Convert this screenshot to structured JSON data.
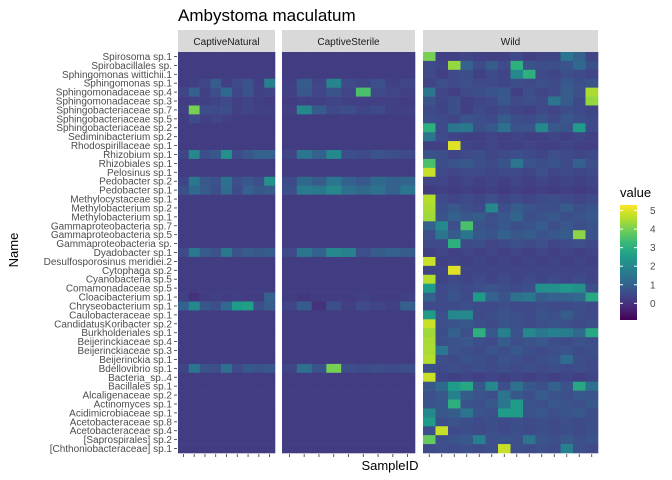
{
  "chart_data": {
    "type": "heatmap",
    "title": "Ambystoma maculatum",
    "xlabel": "SampleID",
    "ylabel": "Name",
    "facets": [
      "CaptiveNatural",
      "CaptiveSterile",
      "Wild"
    ],
    "facet_sample_counts": [
      9,
      9,
      14
    ],
    "rows": [
      "Spirosoma sp.1",
      "Spirobacillales sp.",
      "Sphingomonas wittichii.1",
      "Sphingomonas sp.1",
      "Sphingomonadaceae sp.4",
      "Sphingomonadaceae sp.3",
      "Sphingobacteriaceae sp.7",
      "Sphingobacteriaceae sp.5",
      "Sphingobacteriaceae sp.2",
      "Sediminibacterium sp.2",
      "Rhodospirillaceae sp.1",
      "Rhizobium sp.1",
      "Rhizobiales sp.1",
      "Pelosinus sp.1",
      "Pedobacter sp.2",
      "Pedobacter sp.1",
      "Methylocystaceae sp.1",
      "Methylobacterium sp.2",
      "Methylobacterium sp.1",
      "Gammaproteobacteria sp.7",
      "Gammaproteobacteria sp.5",
      "Gammaproteobacteria sp.",
      "Dyadobacter sp.1",
      "Desulfosporosinus meridiei.2",
      "Cytophaga sp.2",
      "Cyanobacteria sp.5",
      "Comamonadaceae sp.5",
      "Cloacibacterium sp.1",
      "Chryseobacterium sp.1",
      "Caulobacteraceae sp.1",
      "CandidatusKoribacter sp.2",
      "Burkholderiales sp.1",
      "Beijerinckiaceae sp.4",
      "Beijerinckiaceae sp.3",
      "Beijerinckia sp.1",
      "Bdellovibrio sp.1",
      "Bacteria_sp..4",
      "Bacillales sp.1",
      "Alcaligenaceae sp.2",
      "Actinomyces sp.1",
      "Acidimicrobiaceae sp.1",
      "Acetobacteraceae sp.8",
      "Acetobacteraceae sp.4",
      "[Saprospirales] sp.2",
      "[Chthoniobacteraceae] sp.1"
    ],
    "values": {
      "CaptiveNatural": {
        "Sphingomonas sp.1": [
          0.2,
          0.3,
          0.4,
          0.9,
          0.3,
          0.5,
          0.7,
          0.3,
          1.8
        ],
        "Sphingomonadaceae sp.4": [
          0.4,
          1.0,
          0.3,
          0.6,
          1.2,
          0.4,
          0.7,
          0.3,
          0.4
        ],
        "Sphingomonadaceae sp.3": [
          0.2,
          0.3,
          0.3,
          0.4,
          0.5,
          0.3,
          0.4,
          0.3,
          0.2
        ],
        "Sphingobacteriaceae sp.7": [
          0.3,
          4.0,
          0.6,
          0.5,
          0.6,
          0.3,
          0.4,
          0.3,
          0.3
        ],
        "Sphingobacteriaceae sp.5": [
          0.2,
          0.5,
          0.3,
          0.4,
          0.3,
          0.2,
          0.2,
          0.2,
          0.2
        ],
        "Rhizobium sp.1": [
          0.4,
          2.0,
          0.6,
          0.8,
          2.2,
          0.5,
          0.8,
          1.0,
          1.0
        ],
        "Pedobacter sp.2": [
          0.4,
          1.6,
          0.8,
          0.7,
          1.4,
          0.6,
          0.8,
          0.6,
          2.2
        ],
        "Pedobacter sp.1": [
          0.6,
          1.2,
          0.9,
          0.6,
          1.3,
          0.5,
          1.0,
          0.8,
          0.9
        ],
        "Dyadobacter sp.1": [
          0.5,
          1.6,
          0.9,
          0.7,
          1.6,
          0.7,
          0.9,
          0.8,
          0.9
        ],
        "Cloacibacterium sp.1": [
          0.3,
          0.0,
          0.2,
          0.3,
          0.2,
          0.3,
          0.2,
          0.2,
          1.0
        ],
        "Chryseobacterium sp.1": [
          1.0,
          2.0,
          0.8,
          0.6,
          1.2,
          2.5,
          2.6,
          0.6,
          0.9
        ],
        "Bdellovibrio sp.1": [
          0.4,
          1.5,
          0.7,
          0.6,
          1.4,
          0.5,
          0.8,
          0.7,
          0.8
        ]
      },
      "CaptiveSterile": {
        "Sphingomonas sp.1": [
          0.3,
          0.9,
          0.4,
          1.9,
          0.5,
          0.4,
          0.6,
          0.3,
          0.4
        ],
        "Sphingomonadaceae sp.4": [
          0.3,
          0.8,
          0.4,
          0.7,
          0.4,
          3.5,
          0.5,
          0.4,
          0.3
        ],
        "Sphingomonadaceae sp.3": [
          0.2,
          0.3,
          0.3,
          0.4,
          0.3,
          0.3,
          0.3,
          0.3,
          0.2
        ],
        "Sphingobacteriaceae sp.7": [
          0.3,
          2.0,
          0.9,
          0.5,
          0.6,
          0.4,
          0.5,
          0.3,
          0.3
        ],
        "Rhizobium sp.1": [
          0.4,
          1.5,
          1.0,
          2.0,
          0.6,
          0.5,
          0.7,
          0.6,
          0.5
        ],
        "Pedobacter sp.2": [
          0.5,
          1.2,
          0.9,
          1.5,
          1.0,
          0.8,
          1.2,
          1.0,
          1.1
        ],
        "Pedobacter sp.1": [
          0.6,
          1.7,
          1.6,
          2.0,
          1.4,
          1.2,
          1.4,
          1.0,
          1.5
        ],
        "Dyadobacter sp.1": [
          0.5,
          1.5,
          1.0,
          2.0,
          1.8,
          0.6,
          0.9,
          1.0,
          0.9
        ],
        "Cloacibacterium sp.1": [
          0.2,
          0.1,
          0.2,
          0.2,
          0.2,
          0.3,
          0.2,
          0.2,
          0.3
        ],
        "Chryseobacterium sp.1": [
          0.4,
          0.9,
          0.0,
          0.6,
          0.3,
          0.5,
          0.4,
          0.3,
          1.0
        ],
        "Bdellovibrio sp.1": [
          0.4,
          1.4,
          0.7,
          4.0,
          0.6,
          0.5,
          0.6,
          0.5,
          0.6
        ]
      },
      "Wild": {
        "Spirosoma sp.1": [
          4.0,
          0.3,
          0.3,
          0.4,
          0.3,
          0.3,
          0.3,
          0.5,
          0.3,
          0.4,
          0.4,
          1.5,
          1.0,
          0.4
        ],
        "Spirobacillales sp.": [
          0.5,
          0.4,
          4.3,
          1.0,
          0.5,
          0.9,
          0.5,
          3.0,
          0.7,
          0.6,
          0.6,
          0.7,
          1.2,
          0.6
        ],
        "Sphingomonas wittichii.1": [
          0.5,
          0.3,
          0.5,
          0.6,
          0.3,
          0.5,
          0.4,
          2.0,
          3.0,
          0.5,
          0.4,
          0.6,
          0.5,
          0.4
        ],
        "Sphingomonas sp.1": [
          0.4,
          0.6,
          0.5,
          0.6,
          0.5,
          0.5,
          0.4,
          0.6,
          0.5,
          0.6,
          0.5,
          0.8,
          0.6,
          0.7
        ],
        "Sphingomonadaceae sp.4": [
          1.5,
          0.4,
          0.3,
          0.5,
          0.6,
          0.7,
          0.8,
          0.3,
          0.6,
          0.4,
          0.5,
          0.9,
          0.6,
          4.5
        ],
        "Sphingomonadaceae sp.3": [
          0.7,
          0.4,
          0.6,
          0.3,
          0.4,
          0.5,
          0.8,
          0.5,
          0.6,
          0.5,
          1.5,
          0.9,
          0.5,
          4.3
        ],
        "Sphingobacteriaceae sp.7": [
          0.5,
          0.4,
          0.6,
          0.3,
          0.5,
          0.4,
          0.5,
          0.4,
          0.3,
          0.5,
          0.4,
          0.6,
          0.5,
          0.4
        ],
        "Sphingobacteriaceae sp.5": [
          0.6,
          0.5,
          0.4,
          0.7,
          0.6,
          0.5,
          0.9,
          0.6,
          0.5,
          0.7,
          0.5,
          0.8,
          0.6,
          0.5
        ],
        "Sphingobacteriaceae sp.2": [
          3.0,
          0.5,
          1.5,
          1.6,
          0.6,
          0.8,
          1.4,
          0.7,
          0.7,
          2.0,
          0.8,
          0.7,
          2.5,
          0.5
        ],
        "Sediminibacterium sp.2": [
          1.5,
          0.5,
          0.4,
          0.3,
          0.3,
          0.4,
          0.3,
          0.4,
          0.3,
          0.3,
          0.4,
          0.3,
          0.4,
          0.3
        ],
        "Rhodospirillaceae sp.1": [
          0.3,
          0.3,
          5.0,
          0.4,
          0.3,
          0.4,
          0.3,
          0.3,
          0.4,
          0.3,
          0.3,
          0.4,
          0.3,
          0.3
        ],
        "Rhizobium sp.1": [
          0.7,
          0.6,
          0.4,
          0.5,
          0.6,
          0.4,
          0.5,
          0.6,
          0.5,
          0.4,
          0.6,
          0.5,
          0.4,
          0.5
        ],
        "Rhizobiales sp.1": [
          3.5,
          0.6,
          0.7,
          0.8,
          0.6,
          0.5,
          0.7,
          1.5,
          0.7,
          0.6,
          0.7,
          0.5,
          1.0,
          0.6
        ],
        "Pelosinus sp.1": [
          4.8,
          0.5,
          0.4,
          0.5,
          0.5,
          0.4,
          0.5,
          0.5,
          0.4,
          0.6,
          0.4,
          0.5,
          0.4,
          0.5
        ],
        "Pedobacter sp.2": [
          0.4,
          0.4,
          0.3,
          0.4,
          0.3,
          0.4,
          0.3,
          0.4,
          0.3,
          0.4,
          0.3,
          0.4,
          0.3,
          0.4
        ],
        "Pedobacter sp.1": [
          0.2,
          0.3,
          0.2,
          0.3,
          0.2,
          0.3,
          0.2,
          0.3,
          0.2,
          0.3,
          0.2,
          0.3,
          0.2,
          0.3
        ],
        "Methylocystaceae sp.1": [
          4.6,
          0.5,
          0.4,
          0.5,
          0.4,
          0.6,
          0.4,
          0.5,
          0.4,
          0.5,
          0.6,
          0.5,
          0.4,
          0.5
        ],
        "Methylobacterium sp.2": [
          4.5,
          0.6,
          0.8,
          0.6,
          0.5,
          2.0,
          0.6,
          0.9,
          0.7,
          0.6,
          0.6,
          0.9,
          0.6,
          0.7
        ],
        "Methylobacterium sp.1": [
          4.4,
          0.7,
          1.0,
          0.8,
          0.9,
          0.6,
          0.8,
          1.1,
          0.6,
          0.7,
          0.8,
          0.6,
          0.7,
          0.8
        ],
        "Gammaproteobacteria sp.7": [
          1.0,
          2.0,
          0.6,
          3.5,
          0.7,
          0.6,
          0.8,
          0.6,
          0.7,
          0.9,
          0.6,
          0.8,
          0.6,
          0.7
        ],
        "Gammaproteobacteria sp.5": [
          0.6,
          1.5,
          0.9,
          1.5,
          0.8,
          0.7,
          1.0,
          0.8,
          0.9,
          0.7,
          0.8,
          0.9,
          4.2,
          0.7
        ],
        "Gammaproteobacteria sp.": [
          0.5,
          0.5,
          3.0,
          0.5,
          0.6,
          0.4,
          0.5,
          0.6,
          0.5,
          0.6,
          0.4,
          0.5,
          0.6,
          0.5
        ],
        "Dyadobacter sp.1": [
          0.3,
          0.4,
          0.3,
          0.4,
          0.3,
          0.4,
          0.3,
          0.4,
          0.3,
          0.4,
          0.3,
          0.4,
          0.3,
          0.4
        ],
        "Desulfosporosinus meridiei.2": [
          4.8,
          0.3,
          0.4,
          0.3,
          0.4,
          0.3,
          0.4,
          0.3,
          0.4,
          0.3,
          0.4,
          0.3,
          0.4,
          0.3
        ],
        "Cytophaga sp.2": [
          0.4,
          0.4,
          5.0,
          0.4,
          0.4,
          0.4,
          0.4,
          0.4,
          0.4,
          0.4,
          0.4,
          0.4,
          0.4,
          0.4
        ],
        "Cyanobacteria sp.5": [
          4.6,
          0.4,
          0.5,
          0.4,
          0.5,
          0.4,
          0.5,
          0.4,
          0.5,
          0.4,
          0.5,
          0.4,
          0.5,
          0.4
        ],
        "Comamonadaceae sp.5": [
          2.5,
          0.5,
          0.6,
          0.5,
          0.6,
          0.7,
          0.6,
          0.5,
          0.6,
          2.2,
          2.2,
          2.4,
          2.2,
          0.6
        ],
        "Cloacibacterium sp.1": [
          1.0,
          0.5,
          0.7,
          0.5,
          2.5,
          1.0,
          0.7,
          1.4,
          1.6,
          0.9,
          1.0,
          1.0,
          1.2,
          2.8
        ],
        "Chryseobacterium sp.1": [
          0.5,
          0.5,
          0.5,
          0.6,
          0.5,
          0.5,
          0.6,
          0.5,
          0.5,
          0.6,
          0.5,
          0.5,
          0.6,
          0.5
        ],
        "Caulobacteraceae sp.1": [
          2.5,
          0.6,
          2.0,
          2.0,
          0.5,
          0.6,
          0.7,
          0.6,
          0.5,
          0.7,
          0.6,
          0.9,
          0.6,
          0.5
        ],
        "CandidatusKoribacter sp.2": [
          4.8,
          0.6,
          0.7,
          0.8,
          0.6,
          0.5,
          0.7,
          0.6,
          0.5,
          0.6,
          0.7,
          0.6,
          0.5,
          0.6
        ],
        "Burkholderiales sp.1": [
          4.4,
          0.6,
          1.0,
          0.6,
          3.0,
          0.8,
          1.8,
          0.7,
          2.0,
          1.6,
          1.8,
          1.7,
          1.2,
          2.8
        ],
        "Beijerinckiaceae sp.4": [
          4.5,
          0.6,
          0.7,
          0.8,
          0.6,
          0.5,
          0.9,
          0.6,
          0.7,
          0.8,
          0.6,
          0.5,
          0.7,
          0.6
        ],
        "Beijerinckiaceae sp.3": [
          4.5,
          1.5,
          0.7,
          0.6,
          0.5,
          0.7,
          0.6,
          0.8,
          0.6,
          0.5,
          0.6,
          0.7,
          0.5,
          0.6
        ],
        "Beijerinckia sp.1": [
          4.6,
          0.6,
          0.5,
          0.7,
          0.6,
          0.5,
          0.7,
          0.6,
          0.5,
          0.6,
          0.7,
          1.3,
          0.6,
          0.5
        ],
        "Bdellovibrio sp.1": [
          0.6,
          0.5,
          0.6,
          0.5,
          0.6,
          0.5,
          0.6,
          0.5,
          0.6,
          0.5,
          0.6,
          0.5,
          0.6,
          0.5
        ],
        "Bacteria_sp..4": [
          4.8,
          0.4,
          0.3,
          0.4,
          0.3,
          0.4,
          0.3,
          0.4,
          0.3,
          0.4,
          0.3,
          0.4,
          0.3,
          0.4
        ],
        "Bacillales sp.1": [
          0.8,
          1.2,
          2.5,
          2.8,
          0.8,
          2.0,
          0.6,
          1.4,
          0.8,
          0.6,
          1.0,
          0.7,
          2.8,
          1.4
        ],
        "Alcaligenaceae sp.2": [
          0.6,
          0.8,
          1.8,
          0.9,
          0.7,
          0.6,
          1.5,
          0.8,
          0.6,
          0.9,
          0.7,
          0.6,
          0.8,
          0.7
        ],
        "Actinomyces sp.1": [
          0.7,
          0.8,
          3.0,
          0.7,
          0.6,
          0.8,
          1.5,
          2.5,
          0.7,
          0.6,
          0.8,
          0.7,
          0.6,
          0.8
        ],
        "Acidimicrobiaceae sp.1": [
          2.0,
          0.8,
          0.9,
          1.5,
          0.7,
          0.6,
          2.5,
          2.5,
          0.7,
          0.8,
          0.6,
          0.7,
          0.8,
          0.6
        ],
        "Acetobacteraceae sp.8": [
          2.5,
          0.6,
          0.7,
          0.6,
          0.5,
          0.6,
          0.5,
          0.6,
          0.5,
          0.6,
          0.5,
          0.6,
          0.5,
          0.6
        ],
        "Acetobacteraceae sp.4": [
          0.6,
          4.8,
          0.5,
          0.6,
          0.5,
          0.6,
          0.5,
          0.6,
          0.5,
          0.6,
          0.5,
          0.6,
          0.5,
          0.6
        ],
        "[Saprospirales] sp.2": [
          3.8,
          0.6,
          0.7,
          0.8,
          1.8,
          0.6,
          0.7,
          0.6,
          1.5,
          0.7,
          0.6,
          0.8,
          0.6,
          0.7
        ],
        "[Chthoniobacteraceae] sp.1": [
          0.5,
          0.6,
          0.5,
          0.6,
          0.5,
          0.6,
          4.8,
          0.6,
          0.5,
          0.6,
          0.5,
          1.8,
          0.6,
          0.5
        ]
      }
    },
    "default_value_captive": 0.2,
    "default_value_wild": 0.3,
    "color_scale": {
      "name": "viridis",
      "domain": [
        -0.9,
        5.3
      ],
      "stops": [
        "#440154",
        "#482878",
        "#3e4989",
        "#31688e",
        "#26828e",
        "#1f9e89",
        "#35b779",
        "#6ece58",
        "#b5de2b",
        "#fde725"
      ]
    },
    "legend": {
      "title": "value",
      "ticks": [
        0,
        1,
        2,
        3,
        4,
        5
      ],
      "position": "right"
    },
    "strip_fill": "#d9d9d9",
    "panel_background": "#ffffff"
  }
}
